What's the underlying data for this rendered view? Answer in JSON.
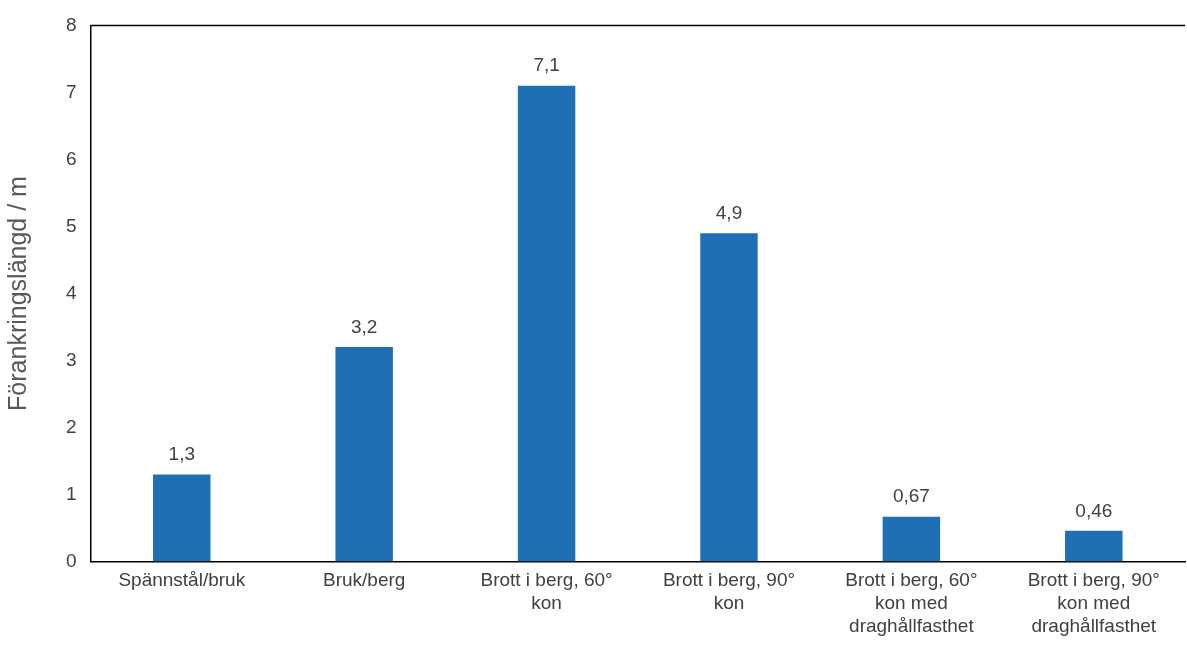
{
  "chart_data": {
    "type": "bar",
    "ylabel": "Förankringslängd / m",
    "categories": [
      "Spännstål/bruk",
      "Bruk/berg",
      "Brott i berg, 60° kon",
      "Brott i berg, 90° kon",
      "Brott i berg, 60° kon med draghållfasthet",
      "Brott i berg, 90° kon med draghållfasthet"
    ],
    "values": [
      1.3,
      3.2,
      7.1,
      4.9,
      0.67,
      0.46
    ],
    "value_labels": [
      "1,3",
      "3,2",
      "7,1",
      "4,9",
      "0,67",
      "0,46"
    ],
    "color": "#1f6fb5",
    "ylim": [
      0,
      8
    ],
    "yticks": [
      0,
      1,
      2,
      3,
      4,
      5,
      6,
      7,
      8
    ],
    "grid": false,
    "legend": false
  }
}
